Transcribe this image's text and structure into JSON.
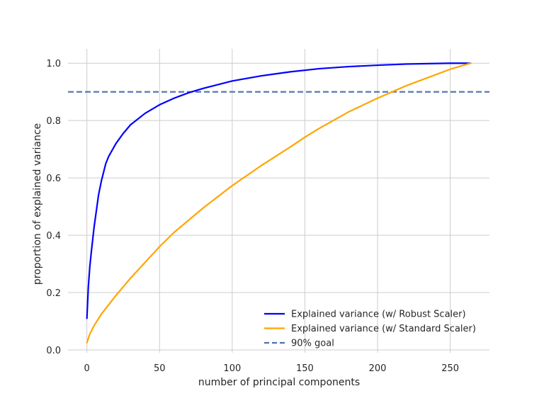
{
  "chart_data": {
    "type": "line",
    "title": "",
    "xlabel": "number of principal components",
    "ylabel": "proportion of explained variance",
    "xlim": [
      -13,
      277
    ],
    "ylim": [
      -0.01,
      1.05
    ],
    "xticks": [
      0,
      50,
      100,
      150,
      200,
      250
    ],
    "xtick_labels": [
      "0",
      "50",
      "100",
      "150",
      "200",
      "250"
    ],
    "yticks": [
      0.0,
      0.2,
      0.4,
      0.6,
      0.8,
      1.0
    ],
    "ytick_labels": [
      "0.0",
      "0.2",
      "0.4",
      "0.6",
      "0.8",
      "1.0"
    ],
    "grid": true,
    "legend_position": "lower-right",
    "series": [
      {
        "name": "Explained variance (w/ Robust Scaler)",
        "color": "#0000ff",
        "style": "solid",
        "x": [
          0,
          1,
          2,
          3,
          5,
          8,
          10,
          13,
          15,
          20,
          25,
          30,
          40,
          50,
          60,
          70,
          80,
          100,
          120,
          140,
          160,
          180,
          200,
          220,
          240,
          250,
          264
        ],
        "y": [
          0.11,
          0.22,
          0.29,
          0.34,
          0.43,
          0.54,
          0.59,
          0.65,
          0.675,
          0.72,
          0.755,
          0.785,
          0.825,
          0.855,
          0.878,
          0.897,
          0.912,
          0.938,
          0.956,
          0.97,
          0.981,
          0.988,
          0.993,
          0.997,
          0.999,
          1.0,
          1.0
        ]
      },
      {
        "name": "Explained variance (w/ Standard Scaler)",
        "color": "#ffa500",
        "style": "solid",
        "x": [
          0,
          2,
          5,
          10,
          20,
          30,
          40,
          50,
          60,
          80,
          100,
          120,
          140,
          150,
          160,
          180,
          200,
          210,
          220,
          240,
          250,
          264
        ],
        "y": [
          0.025,
          0.055,
          0.085,
          0.125,
          0.19,
          0.25,
          0.305,
          0.36,
          0.41,
          0.495,
          0.573,
          0.643,
          0.708,
          0.742,
          0.773,
          0.83,
          0.878,
          0.9,
          0.922,
          0.96,
          0.979,
          1.0
        ]
      }
    ],
    "reference_lines": [
      {
        "name": "90% goal",
        "y": 0.9,
        "color": "#4c72b0",
        "style": "dashed"
      }
    ]
  }
}
